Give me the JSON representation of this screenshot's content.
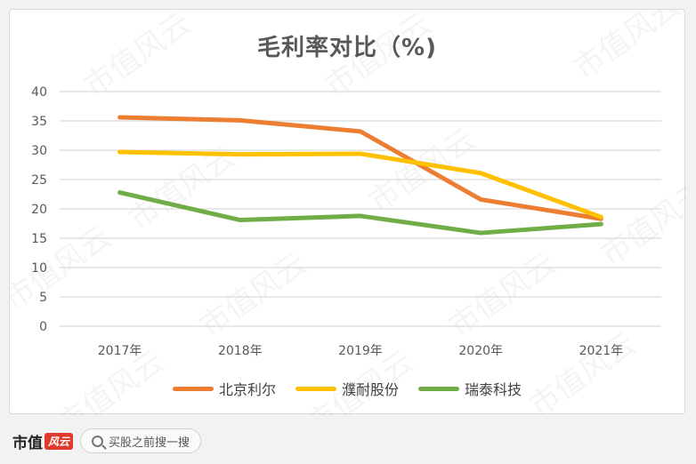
{
  "watermark": "市值风云",
  "footer": {
    "brand": "市值",
    "brand_mark": "风云",
    "search_placeholder": "买股之前搜一搜"
  },
  "chart_data": {
    "type": "line",
    "title": "毛利率对比（%)",
    "categories": [
      "2017年",
      "2018年",
      "2019年",
      "2020年",
      "2021年"
    ],
    "ylim": [
      0,
      40
    ],
    "yticks": [
      0,
      5,
      10,
      15,
      20,
      25,
      30,
      35,
      40
    ],
    "grid": true,
    "legend_position": "bottom",
    "series": [
      {
        "name": "北京利尔",
        "color": "#ed7d31",
        "values": [
          35.6,
          35.1,
          33.2,
          21.6,
          18.3
        ]
      },
      {
        "name": "濮耐股份",
        "color": "#ffc000",
        "values": [
          29.7,
          29.3,
          29.4,
          26.1,
          18.6
        ]
      },
      {
        "name": "瑞泰科技",
        "color": "#70ad47",
        "values": [
          22.8,
          18.1,
          18.8,
          15.9,
          17.4
        ]
      }
    ]
  }
}
